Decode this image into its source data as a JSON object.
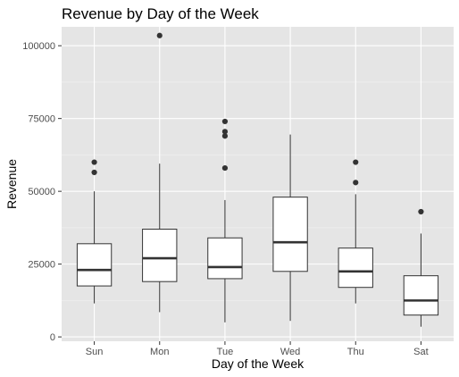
{
  "chart_data": {
    "type": "boxplot",
    "title": "Revenue by Day of the Week",
    "xlabel": "Day of the Week",
    "ylabel": "Revenue",
    "categories": [
      "Sun",
      "Mon",
      "Tue",
      "Wed",
      "Thu",
      "Sat"
    ],
    "y_ticks": [
      0,
      25000,
      50000,
      75000,
      100000
    ],
    "y_tick_labels": [
      "0",
      "25000",
      "50000",
      "75000",
      "100000"
    ],
    "ylim": [
      -1500,
      106500
    ],
    "grid": true,
    "boxes": [
      {
        "category": "Sun",
        "min": 11500,
        "q1": 17500,
        "median": 23000,
        "q3": 32000,
        "max": 50000,
        "outliers": [
          56500,
          60000
        ]
      },
      {
        "category": "Mon",
        "min": 8500,
        "q1": 19000,
        "median": 27000,
        "q3": 37000,
        "max": 59500,
        "outliers": [
          103500
        ]
      },
      {
        "category": "Tue",
        "min": 5000,
        "q1": 20000,
        "median": 24000,
        "q3": 34000,
        "max": 47000,
        "outliers": [
          58000,
          69000,
          70500,
          74000
        ]
      },
      {
        "category": "Wed",
        "min": 5500,
        "q1": 22500,
        "median": 32500,
        "q3": 48000,
        "max": 69500,
        "outliers": []
      },
      {
        "category": "Thu",
        "min": 11500,
        "q1": 17000,
        "median": 22500,
        "q3": 30500,
        "max": 49000,
        "outliers": [
          53000,
          60000
        ]
      },
      {
        "category": "Sat",
        "min": 3500,
        "q1": 7500,
        "median": 12500,
        "q3": 21000,
        "max": 35500,
        "outliers": [
          43000
        ]
      }
    ],
    "colors": {
      "panel_background": "#e5e5e5",
      "grid_major": "#ffffff",
      "grid_minor": "#f2f2f2",
      "box_fill": "#ffffff",
      "box_line": "#333333",
      "outlier": "#333333"
    }
  }
}
